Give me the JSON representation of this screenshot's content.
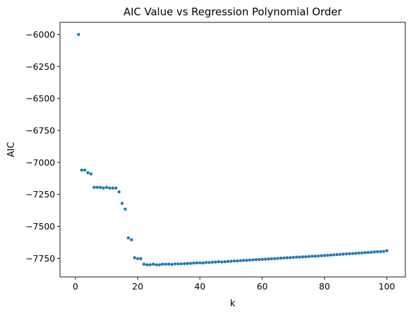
{
  "chart_data": {
    "type": "scatter",
    "title": "AIC Value vs Regression Polynomial Order",
    "xlabel": "k",
    "ylabel": "AIC",
    "xlim": [
      -4.95,
      105.95
    ],
    "ylim": [
      -7895,
      -5905
    ],
    "xticks": [
      0,
      20,
      40,
      60,
      80,
      100
    ],
    "yticks": [
      -6000,
      -6250,
      -6500,
      -6750,
      -7000,
      -7250,
      -7500,
      -7750
    ],
    "xtick_labels": [
      "0",
      "20",
      "40",
      "60",
      "80",
      "100"
    ],
    "ytick_labels": [
      "−6000",
      "−6250",
      "−6500",
      "−6750",
      "−7000",
      "−7250",
      "−7500",
      "−7750"
    ],
    "grid": false,
    "legend": false,
    "marker_color": "#1f77b4",
    "series": [
      {
        "x": [
          1,
          2,
          3,
          4,
          5,
          6,
          7,
          8,
          9,
          10,
          11,
          12,
          13,
          14,
          15,
          16,
          17,
          18,
          19,
          20,
          21,
          22,
          23,
          24,
          25,
          26,
          27,
          28,
          29,
          30,
          31,
          32,
          33,
          34,
          35,
          36,
          37,
          38,
          39,
          40,
          41,
          42,
          43,
          44,
          45,
          46,
          47,
          48,
          49,
          50,
          51,
          52,
          53,
          54,
          55,
          56,
          57,
          58,
          59,
          60,
          61,
          62,
          63,
          64,
          65,
          66,
          67,
          68,
          69,
          70,
          71,
          72,
          73,
          74,
          75,
          76,
          77,
          78,
          79,
          80,
          81,
          82,
          83,
          84,
          85,
          86,
          87,
          88,
          89,
          90,
          91,
          92,
          93,
          94,
          95,
          96,
          97,
          98,
          99,
          100
        ],
        "y": [
          -6000,
          -7060,
          -7060,
          -7080,
          -7090,
          -7195,
          -7195,
          -7195,
          -7200,
          -7195,
          -7200,
          -7200,
          -7200,
          -7230,
          -7320,
          -7365,
          -7590,
          -7605,
          -7745,
          -7752,
          -7752,
          -7795,
          -7800,
          -7800,
          -7795,
          -7800,
          -7800,
          -7795,
          -7795,
          -7795,
          -7797,
          -7793,
          -7793,
          -7793,
          -7791,
          -7790,
          -7789,
          -7787,
          -7785,
          -7785,
          -7786,
          -7782,
          -7782,
          -7780,
          -7778,
          -7776,
          -7778,
          -7776,
          -7774,
          -7772,
          -7770,
          -7770,
          -7768,
          -7766,
          -7765,
          -7763,
          -7762,
          -7760,
          -7759,
          -7757,
          -7756,
          -7755,
          -7753,
          -7752,
          -7750,
          -7748,
          -7747,
          -7745,
          -7744,
          -7742,
          -7740,
          -7740,
          -7738,
          -7737,
          -7735,
          -7733,
          -7733,
          -7731,
          -7729,
          -7728,
          -7726,
          -7724,
          -7722,
          -7720,
          -7719,
          -7717,
          -7715,
          -7714,
          -7712,
          -7710,
          -7709,
          -7707,
          -7705,
          -7704,
          -7702,
          -7700,
          -7698,
          -7697,
          -7695,
          -7690
        ]
      }
    ]
  }
}
